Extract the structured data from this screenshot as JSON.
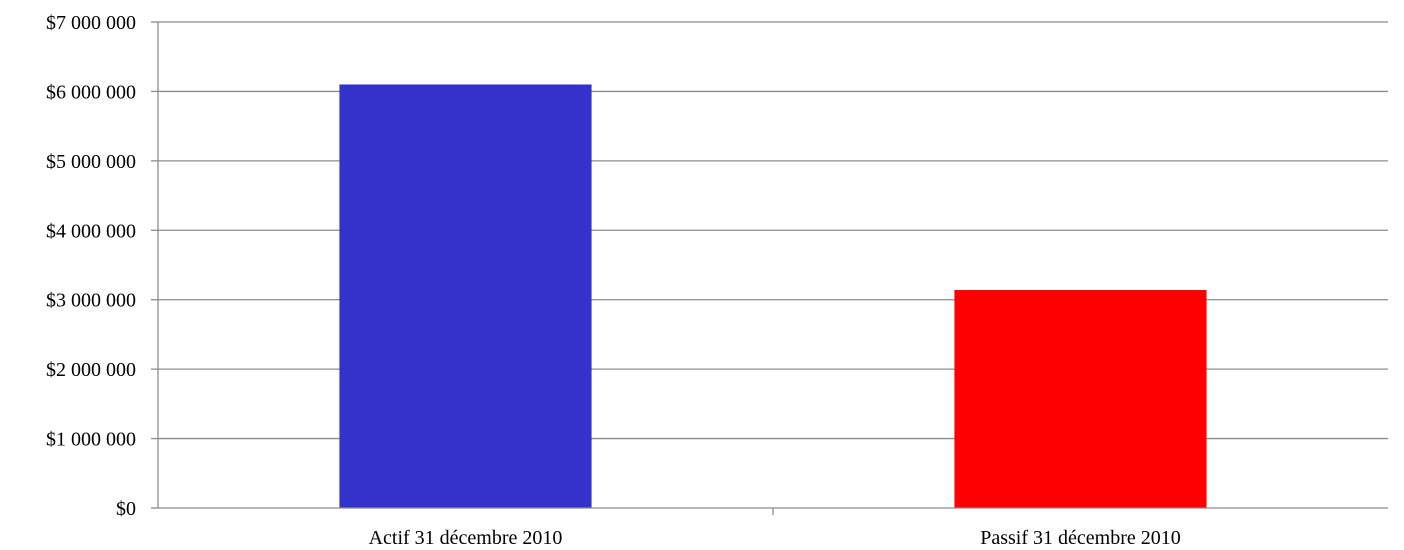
{
  "chart_data": {
    "type": "bar",
    "categories": [
      "Actif 31 décembre 2010",
      "Passif 31 décembre 2010"
    ],
    "values": [
      6100000,
      3140000
    ],
    "bar_colors": [
      "#3333cc",
      "#ff0000"
    ],
    "title": "",
    "xlabel": "",
    "ylabel": "",
    "ylim": [
      0,
      7000000
    ],
    "y_ticks": [
      0,
      1000000,
      2000000,
      3000000,
      4000000,
      5000000,
      6000000,
      7000000
    ],
    "y_tick_labels": [
      "$0",
      "$1 000 000",
      "$2 000 000",
      "$3 000 000",
      "$4 000 000",
      "$5 000 000",
      "$6 000 000",
      "$7 000 000"
    ],
    "grid": true,
    "legend": "none"
  }
}
